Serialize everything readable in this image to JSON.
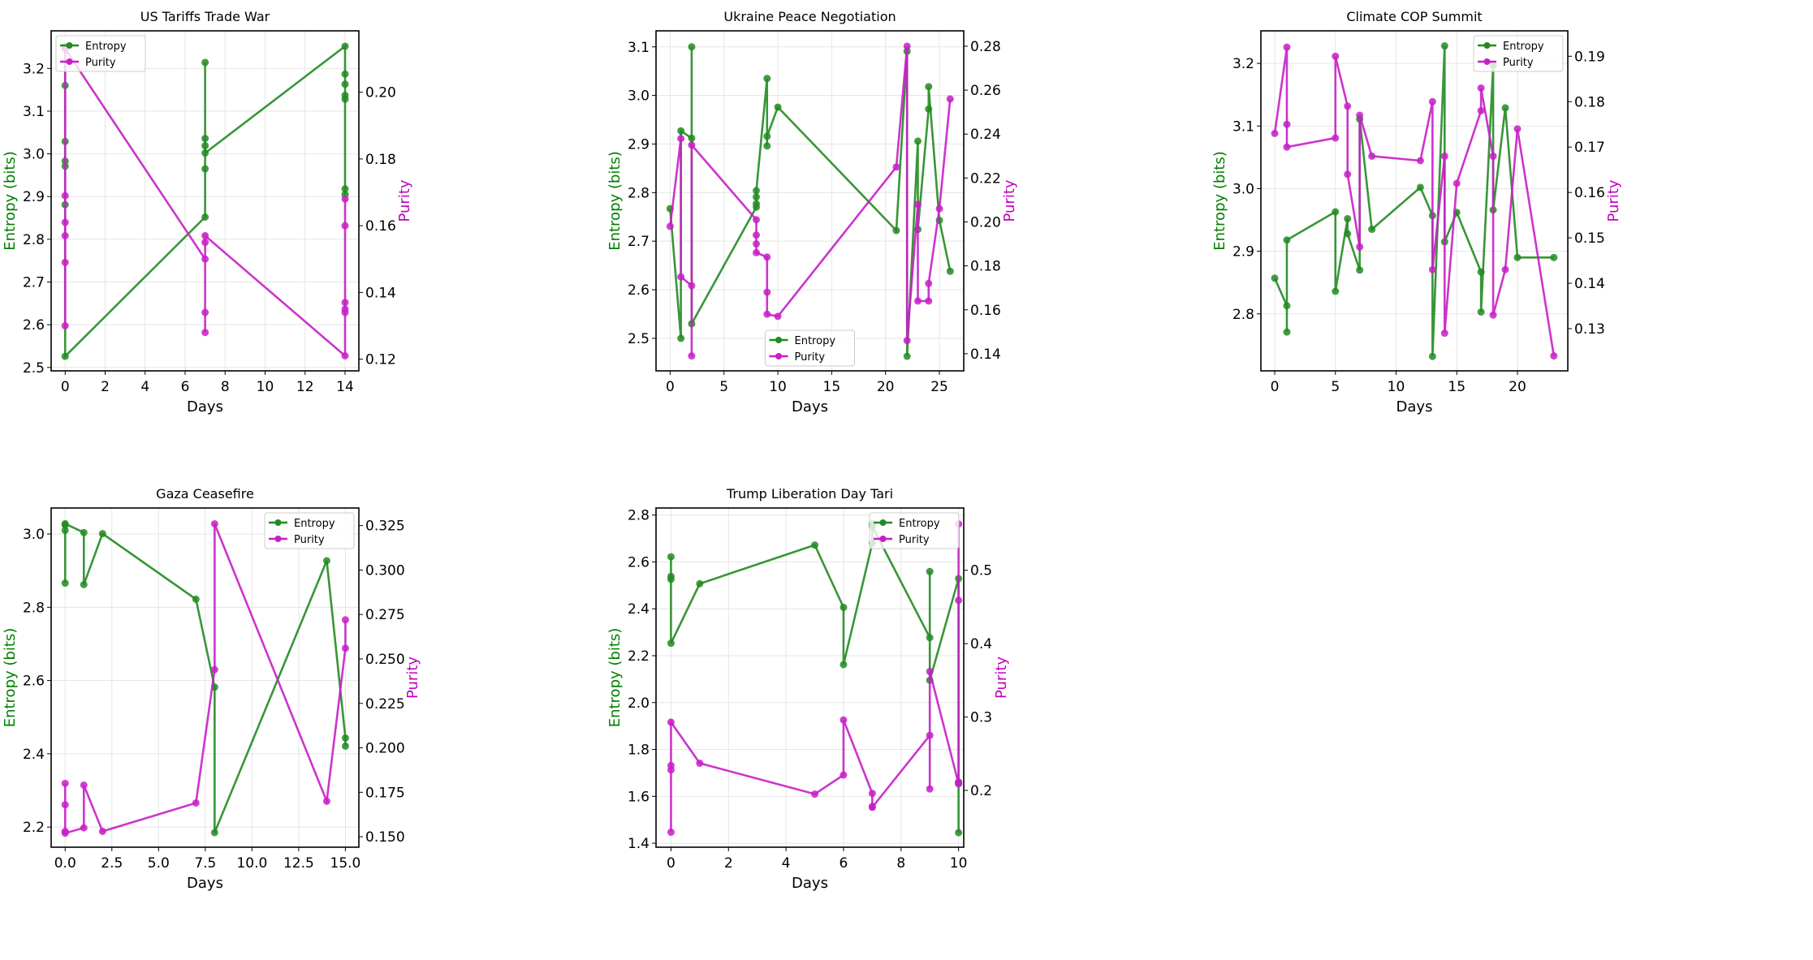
{
  "colors": {
    "entropy": "#228b22",
    "purity": "#c71fc7",
    "entropy_label": "#008000",
    "purity_label": "#c000c0",
    "grid": "#e5e5e5"
  },
  "chart_data": [
    {
      "type": "line",
      "title": "US Tariffs Trade War",
      "xlabel": "Days",
      "ylabel": "Entropy (bits)",
      "y2label": "Purity",
      "grid": true,
      "legend": "upper-left",
      "xlim": [
        -0.7,
        14.69
      ],
      "ylim": [
        2.492,
        3.288
      ],
      "y2lim": [
        0.1165,
        0.2184
      ],
      "xticks": [
        0,
        2,
        4,
        6,
        8,
        10,
        12,
        14
      ],
      "xtick_labels": [
        "0",
        "2",
        "4",
        "6",
        "8",
        "10",
        "12",
        "14"
      ],
      "yticks": [
        2.5,
        2.6,
        2.7,
        2.8,
        2.9,
        3.0,
        3.1,
        3.2
      ],
      "ytick_labels": [
        "2.5",
        "2.6",
        "2.7",
        "2.8",
        "2.9",
        "3.0",
        "3.1",
        "3.2"
      ],
      "y2ticks": [
        0.12,
        0.14,
        0.16,
        0.18,
        0.2
      ],
      "y2tick_labels": [
        "0.12",
        "0.14",
        "0.16",
        "0.18",
        "0.20"
      ],
      "series": [
        {
          "name": "Entropy",
          "axis": "left",
          "x": [
            0,
            0,
            0,
            0,
            0,
            0,
            0,
            7,
            7,
            7,
            7,
            7,
            7,
            14,
            14,
            14,
            14,
            14,
            14,
            14
          ],
          "y": [
            3.252,
            3.16,
            3.029,
            2.983,
            2.971,
            2.881,
            2.526,
            2.852,
            3.214,
            3.036,
            3.019,
            2.965,
            3.002,
            3.252,
            3.187,
            3.163,
            3.137,
            3.128,
            2.918,
            2.905
          ]
        },
        {
          "name": "Purity",
          "axis": "right",
          "x": [
            0,
            0,
            0,
            0,
            0,
            0,
            7,
            7,
            7,
            7,
            7,
            14,
            14,
            14,
            14,
            14,
            14
          ],
          "y": [
            0.13,
            0.149,
            0.157,
            0.161,
            0.169,
            0.213,
            0.15,
            0.134,
            0.128,
            0.155,
            0.157,
            0.121,
            0.16,
            0.168,
            0.137,
            0.135,
            0.134
          ]
        }
      ]
    },
    {
      "type": "line",
      "title": "Ukraine Peace Negotiation",
      "xlabel": "Days",
      "ylabel": "Entropy (bits)",
      "y2label": "Purity",
      "grid": true,
      "legend": "lower-center",
      "xlim": [
        -1.31,
        27.26
      ],
      "ylim": [
        2.433,
        3.133
      ],
      "y2lim": [
        0.1322,
        0.287
      ],
      "xticks": [
        0,
        5,
        10,
        15,
        20,
        25
      ],
      "xtick_labels": [
        "0",
        "5",
        "10",
        "15",
        "20",
        "25"
      ],
      "yticks": [
        2.5,
        2.6,
        2.7,
        2.8,
        2.9,
        3.0,
        3.1
      ],
      "ytick_labels": [
        "2.5",
        "2.6",
        "2.7",
        "2.8",
        "2.9",
        "3.0",
        "3.1"
      ],
      "y2ticks": [
        0.14,
        0.16,
        0.18,
        0.2,
        0.22,
        0.24,
        0.26,
        0.28
      ],
      "y2tick_labels": [
        "0.14",
        "0.16",
        "0.18",
        "0.20",
        "0.22",
        "0.24",
        "0.26",
        "0.28"
      ],
      "series": [
        {
          "name": "Entropy",
          "axis": "left",
          "x": [
            0,
            1,
            1,
            2,
            2,
            2,
            8,
            8,
            8,
            8,
            9,
            9,
            9,
            10,
            21,
            22,
            22,
            23,
            23,
            24,
            24,
            25,
            26
          ],
          "y": [
            2.767,
            2.5,
            2.927,
            2.912,
            3.1,
            2.53,
            2.77,
            2.777,
            2.791,
            2.804,
            3.035,
            2.896,
            2.916,
            2.976,
            2.722,
            3.091,
            2.463,
            2.906,
            2.724,
            2.972,
            3.018,
            2.743,
            2.638
          ]
        },
        {
          "name": "Purity",
          "axis": "right",
          "x": [
            0,
            1,
            1,
            2,
            2,
            2,
            8,
            8,
            8,
            8,
            9,
            9,
            9,
            10,
            21,
            22,
            22,
            23,
            23,
            24,
            24,
            25,
            26
          ],
          "y": [
            0.198,
            0.238,
            0.175,
            0.171,
            0.139,
            0.235,
            0.201,
            0.194,
            0.19,
            0.186,
            0.184,
            0.168,
            0.158,
            0.157,
            0.225,
            0.28,
            0.146,
            0.208,
            0.164,
            0.164,
            0.172,
            0.206,
            0.256
          ]
        }
      ]
    },
    {
      "type": "line",
      "title": "Climate COP Summit",
      "xlabel": "Days",
      "ylabel": "Entropy (bits)",
      "y2label": "Purity",
      "grid": true,
      "legend": "upper-right",
      "xlim": [
        -1.14,
        24.15
      ],
      "ylim": [
        2.709,
        3.252
      ],
      "y2lim": [
        0.1207,
        0.1956
      ],
      "xticks": [
        0,
        5,
        10,
        15,
        20
      ],
      "xtick_labels": [
        "0",
        "5",
        "10",
        "15",
        "20"
      ],
      "yticks": [
        2.8,
        2.9,
        3.0,
        3.1,
        3.2
      ],
      "ytick_labels": [
        "2.8",
        "2.9",
        "3.0",
        "3.1",
        "3.2"
      ],
      "y2ticks": [
        0.13,
        0.14,
        0.15,
        0.16,
        0.17,
        0.18,
        0.19
      ],
      "y2tick_labels": [
        "0.13",
        "0.14",
        "0.15",
        "0.16",
        "0.17",
        "0.18",
        "0.19"
      ],
      "series": [
        {
          "name": "Entropy",
          "axis": "left",
          "x": [
            0,
            1,
            1,
            1,
            5,
            5,
            6,
            6,
            7,
            7,
            8,
            12,
            13,
            13,
            14,
            14,
            15,
            17,
            17,
            18,
            18,
            19,
            20,
            23
          ],
          "y": [
            2.857,
            2.813,
            2.771,
            2.918,
            2.963,
            2.836,
            2.952,
            2.928,
            2.87,
            3.111,
            2.935,
            3.002,
            2.957,
            2.732,
            3.228,
            2.915,
            2.962,
            2.867,
            2.803,
            3.197,
            2.966,
            3.129,
            2.89,
            2.89
          ]
        },
        {
          "name": "Purity",
          "axis": "right",
          "x": [
            0,
            1,
            1,
            1,
            5,
            5,
            6,
            6,
            7,
            7,
            8,
            12,
            13,
            13,
            14,
            14,
            15,
            17,
            17,
            18,
            18,
            19,
            20,
            23
          ],
          "y": [
            0.173,
            0.192,
            0.175,
            0.17,
            0.172,
            0.19,
            0.179,
            0.164,
            0.148,
            0.177,
            0.168,
            0.167,
            0.18,
            0.143,
            0.168,
            0.129,
            0.162,
            0.178,
            0.183,
            0.168,
            0.133,
            0.143,
            0.174,
            0.124
          ]
        }
      ]
    },
    {
      "type": "line",
      "title": "Gaza Ceasefire",
      "xlabel": "Days",
      "ylabel": "Entropy (bits)",
      "y2label": "Purity",
      "grid": true,
      "legend": "upper-right",
      "xlim": [
        -0.75,
        15.72
      ],
      "ylim": [
        2.145,
        3.071
      ],
      "y2lim": [
        0.1441,
        0.3349
      ],
      "xticks": [
        0,
        2.5,
        5,
        7.5,
        10,
        12.5,
        15
      ],
      "xtick_labels": [
        "0.0",
        "2.5",
        "5.0",
        "7.5",
        "10.0",
        "12.5",
        "15.0"
      ],
      "yticks": [
        2.2,
        2.4,
        2.6,
        2.8,
        3.0
      ],
      "ytick_labels": [
        "2.2",
        "2.4",
        "2.6",
        "2.8",
        "3.0"
      ],
      "y2ticks": [
        0.15,
        0.175,
        0.2,
        0.225,
        0.25,
        0.275,
        0.3,
        0.325
      ],
      "y2tick_labels": [
        "0.150",
        "0.175",
        "0.200",
        "0.225",
        "0.250",
        "0.275",
        "0.300",
        "0.325"
      ],
      "series": [
        {
          "name": "Entropy",
          "axis": "left",
          "x": [
            0,
            0,
            0,
            0,
            1,
            1,
            2,
            7,
            8,
            8,
            14,
            15,
            15
          ],
          "y": [
            2.866,
            3.01,
            3.025,
            3.028,
            3.004,
            2.862,
            3.001,
            2.822,
            2.582,
            2.185,
            2.927,
            2.443,
            2.421
          ]
        },
        {
          "name": "Purity",
          "axis": "right",
          "x": [
            0,
            0,
            0,
            0,
            1,
            1,
            2,
            7,
            8,
            8,
            14,
            15,
            15
          ],
          "y": [
            0.18,
            0.168,
            0.153,
            0.152,
            0.155,
            0.179,
            0.153,
            0.169,
            0.244,
            0.326,
            0.17,
            0.256,
            0.272
          ]
        }
      ]
    },
    {
      "type": "line",
      "title": "Trump Liberation Day Tari",
      "xlabel": "Days",
      "ylabel": "Entropy (bits)",
      "y2label": "Purity",
      "grid": true,
      "legend": "upper-right",
      "xlim": [
        -0.52,
        10.18
      ],
      "ylim": [
        1.383,
        2.83
      ],
      "y2lim": [
        0.1226,
        0.5848
      ],
      "xticks": [
        0,
        2,
        4,
        6,
        8,
        10
      ],
      "xtick_labels": [
        "0",
        "2",
        "4",
        "6",
        "8",
        "10"
      ],
      "yticks": [
        1.4,
        1.6,
        1.8,
        2.0,
        2.2,
        2.4,
        2.6,
        2.8
      ],
      "ytick_labels": [
        "1.4",
        "1.6",
        "1.8",
        "2.0",
        "2.2",
        "2.4",
        "2.6",
        "2.8"
      ],
      "y2ticks": [
        0.2,
        0.3,
        0.4,
        0.5
      ],
      "y2tick_labels": [
        "0.2",
        "0.3",
        "0.4",
        "0.5"
      ],
      "series": [
        {
          "name": "Entropy",
          "axis": "left",
          "x": [
            0,
            0,
            0,
            0,
            1,
            5,
            6,
            6,
            7,
            7,
            7,
            9,
            9,
            9,
            10,
            10,
            10,
            10
          ],
          "y": [
            2.622,
            2.538,
            2.526,
            2.253,
            2.507,
            2.672,
            2.406,
            2.162,
            2.68,
            2.763,
            2.752,
            2.277,
            2.559,
            2.095,
            2.529,
            1.661,
            1.655,
            1.445
          ]
        },
        {
          "name": "Purity",
          "axis": "right",
          "x": [
            0,
            0,
            0,
            0,
            1,
            5,
            6,
            6,
            7,
            7,
            7,
            9,
            9,
            9,
            10,
            10,
            10,
            10
          ],
          "y": [
            0.143,
            0.228,
            0.234,
            0.293,
            0.237,
            0.195,
            0.221,
            0.296,
            0.196,
            0.178,
            0.177,
            0.275,
            0.202,
            0.362,
            0.209,
            0.211,
            0.459,
            0.563
          ]
        }
      ]
    }
  ]
}
